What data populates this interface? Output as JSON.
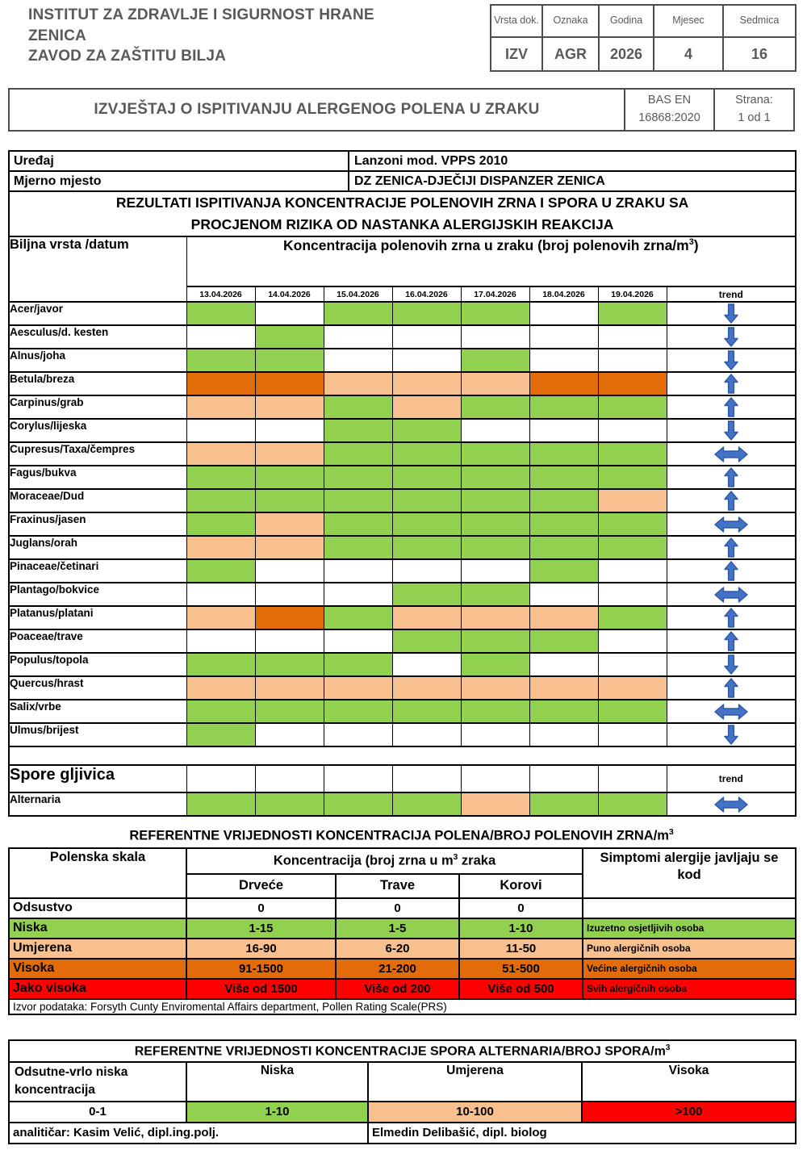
{
  "colors": {
    "cell_green": "#92D050",
    "cell_peach": "#F7C08E",
    "cell_orange": "#E36C0A",
    "cell_red": "#FF0000",
    "arrow_fill": "#4472C4",
    "arrow_stroke": "#2E59A8",
    "header_gray": "#595959"
  },
  "header": {
    "institution_line1": "INSTITUT ZA ZDRAVLJE I SIGURNOST HRANE ZENICA",
    "institution_line2": "ZAVOD ZA ZAŠTITU BILJA",
    "doc_table": {
      "columns": [
        "Vrsta dok.",
        "Oznaka",
        "Godina",
        "Mjesec",
        "Sedmica"
      ],
      "values": [
        "IZV",
        "AGR",
        "2026",
        "4",
        "16"
      ]
    },
    "report_title": "IZVJEŠTAJ O ISPITIVANJU ALERGENOG POLENA U ZRAKU",
    "standard_line1": "BAS EN",
    "standard_line2": "16868:2020",
    "page_label": "Strana:",
    "page_value": "1 od 1"
  },
  "results": {
    "device_label": "Uređaj",
    "device_value": "Lanzoni mod. VPPS 2010",
    "site_label": "Mjerno mjesto",
    "site_value": "DZ ZENICA-DJEČIJI DISPANZER ZENICA",
    "heading_line1": "REZULTATI ISPITIVANJA KONCENTRACIJE POLENOVIH ZRNA I SPORA U ZRAKU SA",
    "heading_line2": "PROCJENOM RIZIKA OD NASTANKA ALERGIJSKIH REAKCIJA",
    "row_header": "Biljna vrsta /datum",
    "conc_header_prefix": "Koncentracija polenovih zrna u zraku (broj polenovih zrna/m",
    "conc_header_sup": "3",
    "conc_header_suffix": ")",
    "dates": [
      "13.04.2026",
      "14.04.2026",
      "15.04.2026",
      "16.04.2026",
      "17.04.2026",
      "18.04.2026",
      "19.04.2026"
    ],
    "trend_label": "trend",
    "species": [
      {
        "name": "Acer/javor",
        "cells": [
          "green",
          "white",
          "green",
          "green",
          "green",
          "white",
          "green"
        ],
        "trend": "down"
      },
      {
        "name": "Aesculus/d. kesten",
        "cells": [
          "white",
          "green",
          "white",
          "white",
          "white",
          "white",
          "white"
        ],
        "trend": "down"
      },
      {
        "name": "Alnus/joha",
        "cells": [
          "green",
          "green",
          "white",
          "white",
          "green",
          "white",
          "white"
        ],
        "trend": "down"
      },
      {
        "name": "Betula/breza",
        "cells": [
          "orange",
          "orange",
          "peach",
          "peach",
          "peach",
          "orange",
          "orange"
        ],
        "trend": "up"
      },
      {
        "name": "Carpinus/grab",
        "cells": [
          "peach",
          "peach",
          "green",
          "peach",
          "green",
          "green",
          "green"
        ],
        "trend": "up"
      },
      {
        "name": "Corylus/lijeska",
        "cells": [
          "white",
          "white",
          "green",
          "green",
          "white",
          "white",
          "white"
        ],
        "trend": "down"
      },
      {
        "name": "Cupresus/Taxa/čempres",
        "cells": [
          "peach",
          "peach",
          "green",
          "green",
          "green",
          "green",
          "green"
        ],
        "trend": "both"
      },
      {
        "name": "Fagus/bukva",
        "cells": [
          "green",
          "green",
          "green",
          "green",
          "green",
          "green",
          "green"
        ],
        "trend": "up"
      },
      {
        "name": "Moraceae/Dud",
        "cells": [
          "green",
          "green",
          "green",
          "green",
          "green",
          "green",
          "peach"
        ],
        "trend": "up"
      },
      {
        "name": "Fraxinus/jasen",
        "cells": [
          "green",
          "peach",
          "green",
          "green",
          "green",
          "green",
          "green"
        ],
        "trend": "both"
      },
      {
        "name": "Juglans/orah",
        "cells": [
          "peach",
          "peach",
          "green",
          "green",
          "green",
          "green",
          "green"
        ],
        "trend": "up"
      },
      {
        "name": "Pinaceae/četinari",
        "cells": [
          "green",
          "white",
          "white",
          "white",
          "white",
          "green",
          "white"
        ],
        "trend": "up"
      },
      {
        "name": "Plantago/bokvice",
        "cells": [
          "white",
          "white",
          "white",
          "green",
          "green",
          "white",
          "white"
        ],
        "trend": "both"
      },
      {
        "name": "Platanus/platani",
        "cells": [
          "peach",
          "orange",
          "green",
          "peach",
          "peach",
          "peach",
          "green"
        ],
        "trend": "up"
      },
      {
        "name": "Poaceae/trave",
        "cells": [
          "white",
          "white",
          "white",
          "green",
          "green",
          "green",
          "white"
        ],
        "trend": "up"
      },
      {
        "name": "Populus/topola",
        "cells": [
          "green",
          "green",
          "green",
          "white",
          "green",
          "white",
          "white"
        ],
        "trend": "down"
      },
      {
        "name": "Quercus/hrast",
        "cells": [
          "peach",
          "peach",
          "peach",
          "peach",
          "peach",
          "peach",
          "peach"
        ],
        "trend": "up"
      },
      {
        "name": "Salix/vrbe",
        "cells": [
          "green",
          "green",
          "green",
          "green",
          "green",
          "green",
          "green"
        ],
        "trend": "both"
      },
      {
        "name": "Ulmus/brijest",
        "cells": [
          "green",
          "white",
          "white",
          "white",
          "white",
          "white",
          "white"
        ],
        "trend": "down"
      }
    ],
    "spores_header": "Spore gljivica",
    "spores_trend_label": "trend",
    "spores": [
      {
        "name": "Alternaria",
        "cells": [
          "green",
          "green",
          "green",
          "green",
          "peach",
          "green",
          "green"
        ],
        "trend": "both"
      }
    ]
  },
  "legend_pollen": {
    "title_prefix": "REFERENTNE VRIJEDNOSTI KONCENTRACIJA POLENA/BROJ POLENOVIH ZRNA/m",
    "title_sup": "3",
    "scale_header": "Polenska skala",
    "conc_header_prefix": "Koncentracija (broj zrna u m",
    "conc_header_sup": "3",
    "conc_header_suffix": " zraka",
    "sub_headers": [
      "Drveće",
      "Trave",
      "Korovi"
    ],
    "symptoms_header": "Simptomi alergije javljaju se kod",
    "rows": [
      {
        "label": "Odsustvo",
        "values": [
          "0",
          "0",
          "0"
        ],
        "symptom": null,
        "bg": "white"
      },
      {
        "label": "Niska",
        "values": [
          "1-15",
          "1-5",
          "1-10"
        ],
        "symptom": "Izuzetno osjetljivih osoba",
        "bg": "green"
      },
      {
        "label": "Umjerena",
        "values": [
          "16-90",
          "6-20",
          "11-50"
        ],
        "symptom": "Puno alergičnih osoba",
        "bg": "peach"
      },
      {
        "label": "Visoka",
        "values": [
          "91-1500",
          "21-200",
          "51-500"
        ],
        "symptom": "Većine alergičnih osoba",
        "bg": "orange"
      },
      {
        "label": "Jako visoka",
        "values": [
          "Više od 1500",
          "Više od 200",
          "Više od 500"
        ],
        "symptom": "Svih alergičnih osoba",
        "bg": "red"
      }
    ],
    "source": "Izvor podataka: Forsyth Cunty Enviromental Affairs department, Pollen Rating Scale(PRS)"
  },
  "legend_alternaria": {
    "title_prefix": "REFERENTNE VRIJEDNOSTI KONCENTRACIJE SPORA ALTERNARIA/BROJ SPORA/m",
    "title_sup": "3",
    "headers": [
      "Odsutne-vrlo niska koncentracija",
      "Niska",
      "Umjerena",
      "Visoka"
    ],
    "values": [
      {
        "text": "0-1",
        "bg": "white"
      },
      {
        "text": "1-10",
        "bg": "green"
      },
      {
        "text": "10-100",
        "bg": "peach"
      },
      {
        "text": ">100",
        "bg": "red"
      }
    ],
    "analyst_left": "analitičar: Kasim Velić,  dipl.ing.polj.",
    "analyst_right": "Elmedin Delibašić, dipl. biolog"
  }
}
